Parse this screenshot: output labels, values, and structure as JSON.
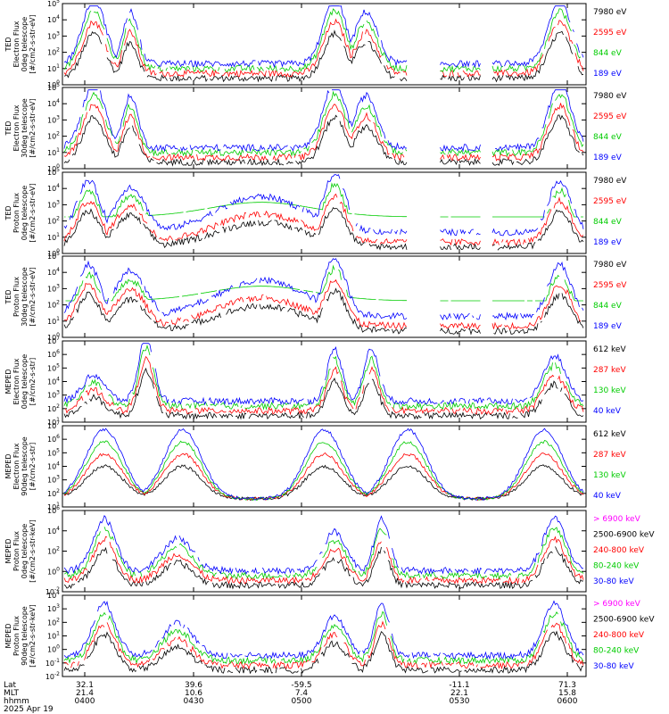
{
  "chart_data": {
    "type": "line",
    "date": "2025 Apr 19",
    "xaxis": {
      "rows": [
        {
          "label": "Lat",
          "values": [
            "32.1",
            "39.6",
            "-59.5",
            "-11.1",
            "71.3"
          ]
        },
        {
          "label": "MLT",
          "values": [
            "21.4",
            "10.6",
            "7.4",
            "22.1",
            "15.8"
          ]
        },
        {
          "label": "hhmm",
          "values": [
            "0400",
            "0430",
            "0500",
            "0530",
            "0600"
          ]
        }
      ]
    },
    "panels": [
      {
        "ylabel": [
          "TED",
          "Electron Flux",
          "0deg telescope",
          "[#/cm2-s-str-eV]"
        ],
        "ytick_exponents": [
          "0",
          "1",
          "2",
          "3",
          "4",
          "5"
        ],
        "series": [
          {
            "name": "7980 eV",
            "color": "#000000"
          },
          {
            "name": "2595 eV",
            "color": "#ff0000"
          },
          {
            "name": "844 eV",
            "color": "#00cc00"
          },
          {
            "name": "189 eV",
            "color": "#0000ff"
          }
        ]
      },
      {
        "ylabel": [
          "TED",
          "Electron Flux",
          "30deg telescope",
          "[#/cm2-s-str-eV]"
        ],
        "ytick_exponents": [
          "0",
          "1",
          "2",
          "3",
          "4",
          "5"
        ],
        "series": [
          {
            "name": "7980 eV",
            "color": "#000000"
          },
          {
            "name": "2595 eV",
            "color": "#ff0000"
          },
          {
            "name": "844 eV",
            "color": "#00cc00"
          },
          {
            "name": "189 eV",
            "color": "#0000ff"
          }
        ]
      },
      {
        "ylabel": [
          "TED",
          "Proton Flux",
          "0deg telescope",
          "[#/cm2-s-str-eV]"
        ],
        "ytick_exponents": [
          "0",
          "1",
          "2",
          "3",
          "4",
          "5"
        ],
        "series": [
          {
            "name": "7980 eV",
            "color": "#000000"
          },
          {
            "name": "2595 eV",
            "color": "#ff0000"
          },
          {
            "name": "844 eV",
            "color": "#00cc00"
          },
          {
            "name": "189 eV",
            "color": "#0000ff"
          }
        ]
      },
      {
        "ylabel": [
          "TED",
          "Proton Flux",
          "30deg telescope",
          "[#/cm2-s-str-eV]"
        ],
        "ytick_exponents": [
          "0",
          "1",
          "2",
          "3",
          "4",
          "5"
        ],
        "series": [
          {
            "name": "7980 eV",
            "color": "#000000"
          },
          {
            "name": "2595 eV",
            "color": "#ff0000"
          },
          {
            "name": "844 eV",
            "color": "#00cc00"
          },
          {
            "name": "189 eV",
            "color": "#0000ff"
          }
        ]
      },
      {
        "ylabel": [
          "MEPED",
          "Electron Flux",
          "0deg telescope",
          "[#/cm2-s-str]"
        ],
        "ytick_exponents": [
          "1",
          "2",
          "3",
          "4",
          "5",
          "6",
          "7"
        ],
        "series": [
          {
            "name": "612 keV",
            "color": "#000000"
          },
          {
            "name": "287 keV",
            "color": "#ff0000"
          },
          {
            "name": "130 keV",
            "color": "#00cc00"
          },
          {
            "name": "40 keV",
            "color": "#0000ff"
          }
        ]
      },
      {
        "ylabel": [
          "MEPED",
          "Electron Flux",
          "90deg telescope",
          "[#/cm2-s-str]"
        ],
        "ytick_exponents": [
          "1",
          "2",
          "3",
          "4",
          "5",
          "6",
          "7"
        ],
        "series": [
          {
            "name": "612 keV",
            "color": "#000000"
          },
          {
            "name": "287 keV",
            "color": "#ff0000"
          },
          {
            "name": "130 keV",
            "color": "#00cc00"
          },
          {
            "name": "40 keV",
            "color": "#0000ff"
          }
        ]
      },
      {
        "ylabel": [
          "MEPED",
          "Proton Flux",
          "0deg telescope",
          "[#/cm2-s-str-keV]"
        ],
        "ytick_exponents": [
          "-2",
          "0",
          "2",
          "4",
          "6"
        ],
        "series": [
          {
            "name": "> 6900 keV",
            "color": "#ff00ff"
          },
          {
            "name": "2500-6900 keV",
            "color": "#000000"
          },
          {
            "name": "240-800 keV",
            "color": "#ff0000"
          },
          {
            "name": "80-240 keV",
            "color": "#00cc00"
          },
          {
            "name": "30-80 keV",
            "color": "#0000ff"
          }
        ]
      },
      {
        "ylabel": [
          "MEPED",
          "Proton Flux",
          "90deg telescope",
          "[#/cm2-s-str-keV]"
        ],
        "ytick_exponents": [
          "-2",
          "-1",
          "0",
          "1",
          "2",
          "3",
          "4"
        ],
        "series": [
          {
            "name": "> 6900 keV",
            "color": "#ff00ff"
          },
          {
            "name": "2500-6900 keV",
            "color": "#000000"
          },
          {
            "name": "240-800 keV",
            "color": "#ff0000"
          },
          {
            "name": "80-240 keV",
            "color": "#00cc00"
          },
          {
            "name": "30-80 keV",
            "color": "#0000ff"
          }
        ]
      }
    ]
  }
}
